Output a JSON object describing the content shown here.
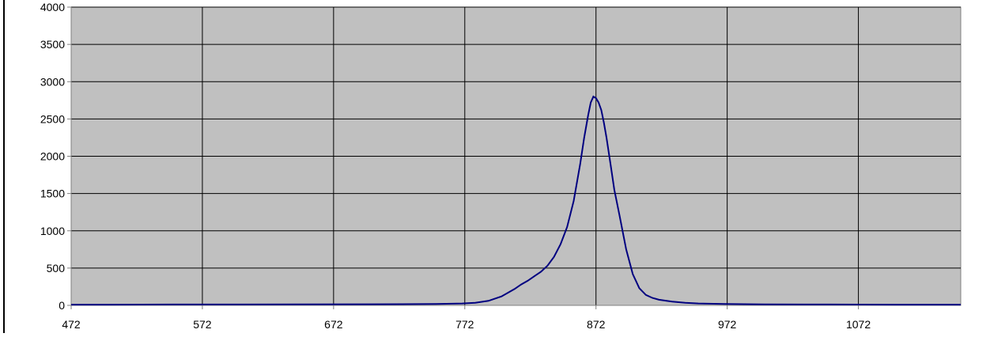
{
  "chart_data": {
    "type": "line",
    "title": "",
    "xlabel": "",
    "ylabel": "",
    "xlim": [
      472,
      1150
    ],
    "ylim": [
      0,
      4000
    ],
    "x_ticks": [
      472,
      572,
      672,
      772,
      872,
      972,
      1072
    ],
    "y_ticks": [
      0,
      500,
      1000,
      1500,
      2000,
      2500,
      3000,
      3500,
      4000
    ],
    "grid": true,
    "legend": "none",
    "colors": {
      "plot_background": "#c0c0c0",
      "grid": "#000000",
      "line": "#000080",
      "axis": "#808080"
    },
    "series": [
      {
        "x": [
          472,
          500,
          550,
          600,
          650,
          700,
          750,
          770,
          780,
          790,
          800,
          810,
          815,
          820,
          825,
          830,
          835,
          840,
          845,
          850,
          855,
          860,
          863,
          866,
          868,
          870,
          872,
          874,
          876,
          878,
          880,
          883,
          886,
          890,
          895,
          900,
          905,
          910,
          915,
          920,
          930,
          940,
          950,
          970,
          1000,
          1050,
          1100,
          1150
        ],
        "values": [
          10,
          10,
          12,
          12,
          14,
          15,
          18,
          25,
          35,
          60,
          120,
          220,
          280,
          330,
          390,
          450,
          530,
          650,
          820,
          1050,
          1400,
          1900,
          2250,
          2550,
          2720,
          2800,
          2780,
          2720,
          2620,
          2450,
          2250,
          1900,
          1550,
          1200,
          750,
          420,
          230,
          140,
          100,
          75,
          50,
          35,
          25,
          18,
          14,
          12,
          10,
          10
        ]
      }
    ]
  }
}
